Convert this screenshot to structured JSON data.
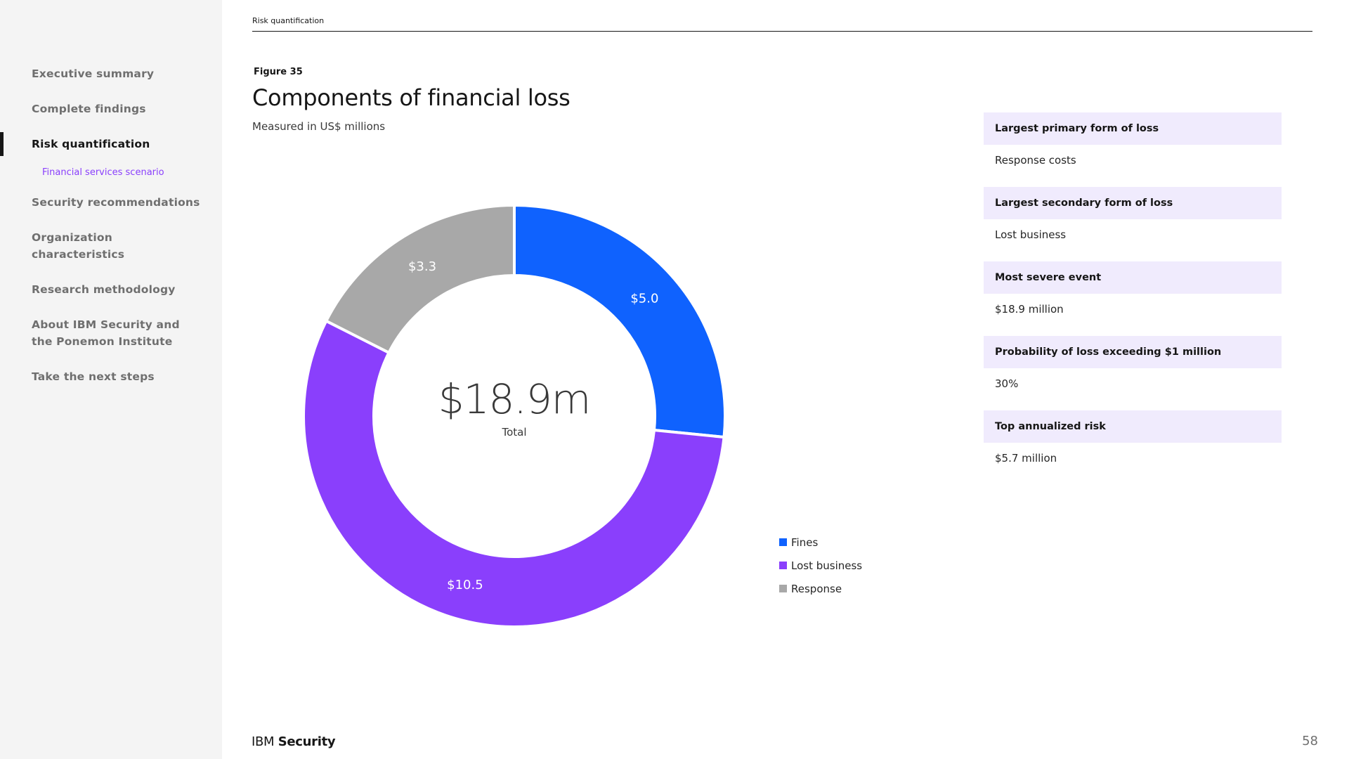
{
  "sidebar": {
    "items": [
      {
        "label": "Executive summary",
        "active": false
      },
      {
        "label": "Complete findings",
        "active": false
      },
      {
        "label": "Risk quantification",
        "active": true
      },
      {
        "label": "Security recommendations",
        "active": false
      },
      {
        "label": "Organization characteristics",
        "active": false
      },
      {
        "label": "Research methodology",
        "active": false
      },
      {
        "label": "About IBM Security and the Ponemon Institute",
        "active": false
      },
      {
        "label": "Take the next steps",
        "active": false
      }
    ],
    "subitem": "Financial services scenario"
  },
  "header": {
    "section": "Risk quantification"
  },
  "figure": {
    "label": "Figure 35",
    "title": "Components of financial loss",
    "subtitle": "Measured in US$ millions",
    "center_value": "$18.9m",
    "center_label": "Total"
  },
  "chart_data": {
    "type": "pie",
    "donut": true,
    "categories": [
      "Fines",
      "Lost business",
      "Response"
    ],
    "values": [
      5.0,
      10.5,
      3.3
    ],
    "data_labels": [
      "$5.0",
      "$10.5",
      "$3.3"
    ],
    "colors": [
      "#0f62fe",
      "#8a3ffc",
      "#a8a8a8"
    ],
    "legend_position": "bottom-right"
  },
  "panel": {
    "cards": [
      {
        "heading": "Largest primary form of loss",
        "value": "Response costs"
      },
      {
        "heading": "Largest secondary form of loss",
        "value": "Lost business"
      },
      {
        "heading": "Most severe event",
        "value": "$18.9 million"
      },
      {
        "heading": "Probability of loss exceeding $1 million",
        "value": "30%"
      },
      {
        "heading": "Top annualized risk",
        "value": "$5.7 million"
      }
    ]
  },
  "footer": {
    "brand_prefix": "IBM",
    "brand_name": "Security",
    "page_number": "58"
  }
}
